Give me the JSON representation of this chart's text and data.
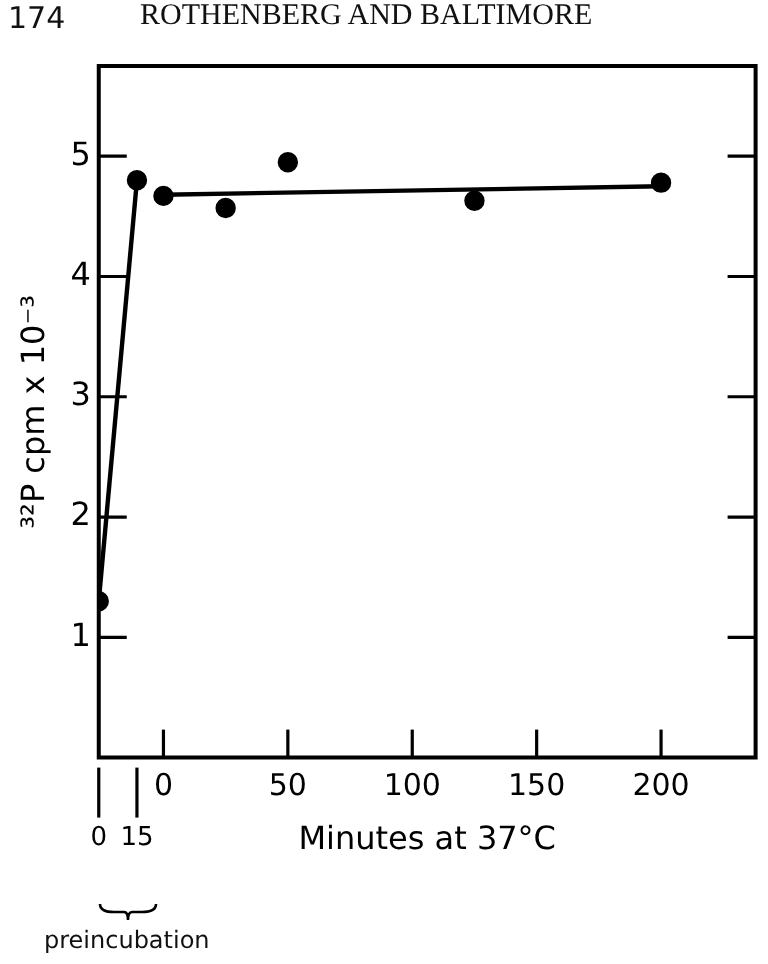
{
  "chart_data": {
    "type": "scatter",
    "ylabel": "³²P cpm x 10⁻³",
    "xlabel": "Minutes at 37°C",
    "annotations": [
      "174",
      "ROTHENBERG AND BALTIMORE",
      "preincubation"
    ],
    "xlim": [
      -26,
      238
    ],
    "xticks": [
      0,
      50,
      100,
      150,
      200
    ],
    "x2lim": [
      0,
      258
    ],
    "x2ticks": [
      0,
      15
    ],
    "ylim": [
      0,
      5.75
    ],
    "yticks": [
      1,
      2,
      3,
      4,
      5
    ],
    "grid": false,
    "legend": false,
    "series": [
      {
        "x": [
          0,
          15
        ],
        "values": [
          1.3,
          4.8
        ],
        "color": "#000000",
        "marker": "circle",
        "axis": "x2"
      },
      {
        "type": "line",
        "x": [
          0,
          15
        ],
        "values": [
          1.3,
          4.8
        ],
        "color": "#000000",
        "marker": "none",
        "axis": "x2"
      },
      {
        "x": [
          0,
          25,
          50,
          125,
          200
        ],
        "values": [
          4.67,
          4.57,
          4.95,
          4.63,
          4.78
        ],
        "color": "#000000",
        "marker": "circle"
      },
      {
        "type": "line",
        "x": [
          0,
          200
        ],
        "values": [
          4.68,
          4.75
        ],
        "color": "#000000",
        "marker": "none"
      }
    ]
  }
}
